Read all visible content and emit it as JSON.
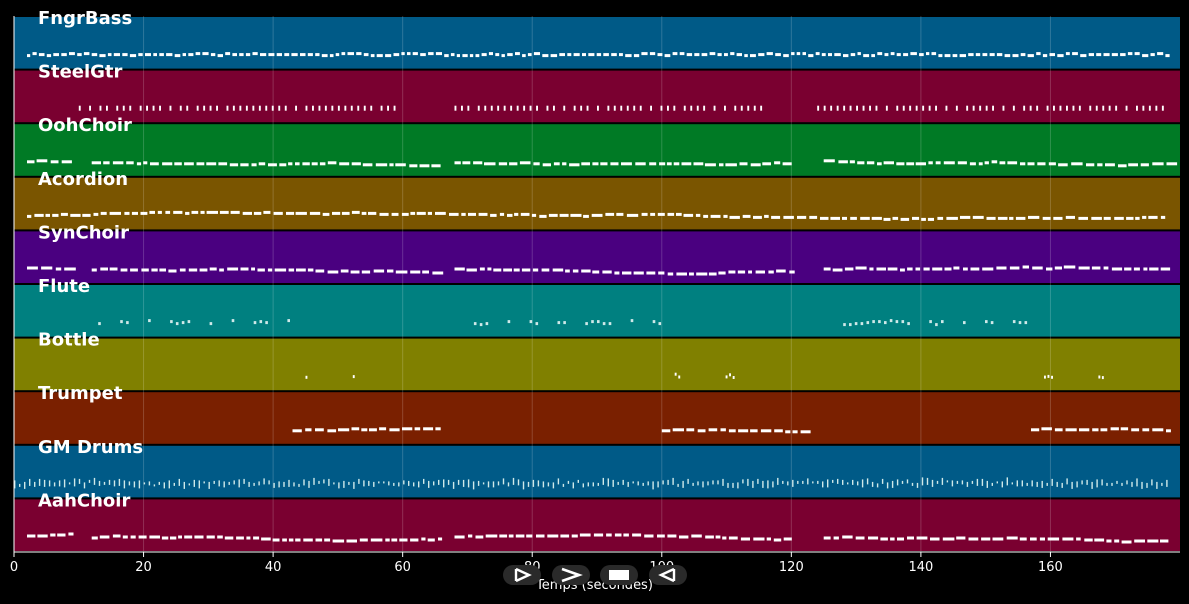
{
  "chart_data": {
    "type": "piano-roll",
    "xlabel": "Temps (secondes)",
    "xlim": [
      0,
      180
    ],
    "xticks": [
      0,
      20,
      40,
      60,
      80,
      100,
      120,
      140,
      160
    ],
    "xtick_labels": [
      "0",
      "20",
      "40",
      "60",
      "80",
      "100",
      "120",
      "140",
      "160"
    ],
    "grid": true,
    "tracks": [
      {
        "name": "FngrBass",
        "color": "#005a87",
        "pattern": "dense",
        "segments": [
          [
            2,
            178
          ]
        ]
      },
      {
        "name": "SteelGtr",
        "color": "#7a0030",
        "pattern": "pulse",
        "segments": [
          [
            10,
            59
          ],
          [
            68,
            116
          ],
          [
            124,
            178
          ]
        ]
      },
      {
        "name": "OohChoir",
        "color": "#007a25",
        "pattern": "melody",
        "segments": [
          [
            2,
            9
          ],
          [
            12,
            66
          ],
          [
            68,
            120
          ],
          [
            125,
            178
          ]
        ]
      },
      {
        "name": "Acordion",
        "color": "#7a5500",
        "pattern": "melody",
        "segments": [
          [
            2,
            178
          ]
        ]
      },
      {
        "name": "SynChoir",
        "color": "#4a0080",
        "pattern": "melody",
        "segments": [
          [
            2,
            9
          ],
          [
            12,
            66
          ],
          [
            68,
            120
          ],
          [
            125,
            178
          ]
        ]
      },
      {
        "name": "Flute",
        "color": "#008080",
        "pattern": "sparse",
        "segments": [
          [
            13,
            43
          ],
          [
            71,
            100
          ],
          [
            128,
            157
          ]
        ]
      },
      {
        "name": "Bottle",
        "color": "#808000",
        "pattern": "rare",
        "segments": [
          [
            45,
            54
          ],
          [
            102,
            111
          ],
          [
            159,
            168
          ]
        ]
      },
      {
        "name": "Trumpet",
        "color": "#7a2000",
        "pattern": "melody",
        "segments": [
          [
            43,
            66
          ],
          [
            100,
            123
          ],
          [
            157,
            178
          ]
        ]
      },
      {
        "name": "GM Drums",
        "color": "#005a87",
        "pattern": "drums",
        "segments": [
          [
            0,
            178
          ]
        ]
      },
      {
        "name": "AahChoir",
        "color": "#7a0030",
        "pattern": "melody",
        "segments": [
          [
            2,
            9
          ],
          [
            12,
            66
          ],
          [
            68,
            120
          ],
          [
            125,
            178
          ]
        ]
      }
    ]
  },
  "controls": {
    "play_icon": "play-icon",
    "forward_icon": "forward-icon",
    "stop_icon": "stop-icon",
    "back_icon": "back-icon"
  }
}
